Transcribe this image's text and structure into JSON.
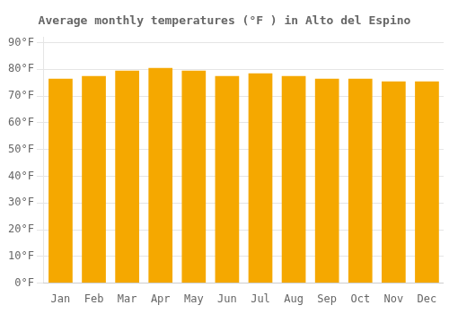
{
  "chart_data": {
    "type": "bar",
    "title": "Average monthly temperatures (°F ) in Alto del Espino",
    "categories": [
      "Jan",
      "Feb",
      "Mar",
      "Apr",
      "May",
      "Jun",
      "Jul",
      "Aug",
      "Sep",
      "Oct",
      "Nov",
      "Dec"
    ],
    "values": [
      76.5,
      77.5,
      79.5,
      80.5,
      79.5,
      77.5,
      78.5,
      77.5,
      76.5,
      76.5,
      75.5,
      75.5
    ],
    "color": "#F5A800",
    "ylim": [
      0,
      92
    ],
    "yticks": [
      {
        "value": 0,
        "label": "0°F"
      },
      {
        "value": 10,
        "label": "10°F"
      },
      {
        "value": 20,
        "label": "20°F"
      },
      {
        "value": 30,
        "label": "30°F"
      },
      {
        "value": 40,
        "label": "40°F"
      },
      {
        "value": 50,
        "label": "50°F"
      },
      {
        "value": 60,
        "label": "60°F"
      },
      {
        "value": 70,
        "label": "70°F"
      },
      {
        "value": 80,
        "label": "80°F"
      },
      {
        "value": 90,
        "label": "90°F"
      }
    ],
    "grid": true
  }
}
